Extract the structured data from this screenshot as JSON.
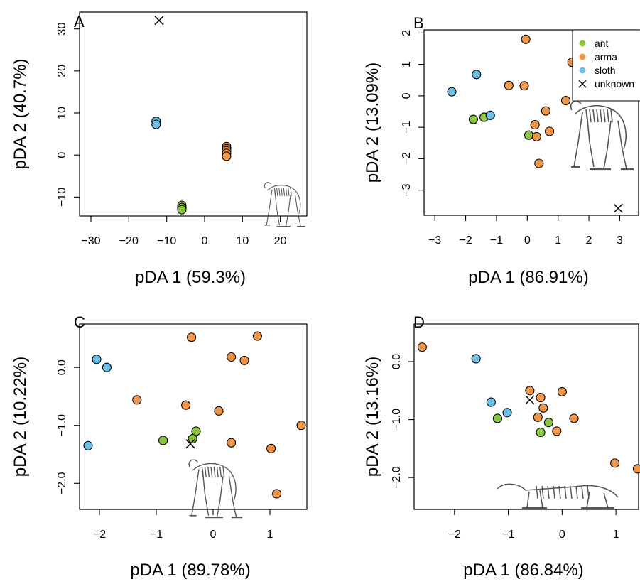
{
  "colors": {
    "ant": "#8cc63f",
    "arma": "#f0964b",
    "sloth": "#6cbfe6",
    "unknown": "#000000"
  },
  "legend": {
    "entries": [
      "ant",
      "arma",
      "sloth",
      "unknown"
    ],
    "placement": "top-right of panel B"
  },
  "chart_data": [
    {
      "type": "scatter",
      "title": "A",
      "xlabel": "pDA 1 (59.3%)",
      "ylabel": "pDA 2 (40.7%)",
      "xlim": [
        -33,
        27
      ],
      "ylim": [
        -14.5,
        34
      ],
      "xticks": [
        -30,
        -20,
        -10,
        0,
        10,
        20
      ],
      "yticks": [
        -10,
        0,
        10,
        20,
        30
      ],
      "series": [
        {
          "name": "ant",
          "points": [
            [
              -6,
              -12
            ],
            [
              -6,
              -12.5
            ],
            [
              -6,
              -13
            ]
          ]
        },
        {
          "name": "arma",
          "points": [
            [
              5.8,
              2
            ],
            [
              5.8,
              1.5
            ],
            [
              5.8,
              1
            ],
            [
              5.8,
              0.4
            ],
            [
              5.8,
              -0.3
            ]
          ]
        },
        {
          "name": "sloth",
          "points": [
            [
              -12.8,
              8
            ],
            [
              -12.8,
              7.3
            ]
          ]
        },
        {
          "name": "unknown",
          "points": [
            [
              -12,
              32
            ]
          ]
        }
      ]
    },
    {
      "type": "scatter",
      "title": "B",
      "xlabel": "pDA 1 (86.91%)",
      "ylabel": "pDA 2 (13.09%)",
      "xlim": [
        -3.35,
        3.75
      ],
      "ylim": [
        -3.8,
        2.1
      ],
      "xticks": [
        -3,
        -2,
        -1,
        0,
        1,
        2,
        3
      ],
      "yticks": [
        -3,
        -2,
        -1,
        0,
        1,
        2
      ],
      "series": [
        {
          "name": "ant",
          "points": [
            [
              -1.75,
              -0.75
            ],
            [
              -1.4,
              -0.68
            ],
            [
              0.05,
              -1.25
            ]
          ]
        },
        {
          "name": "arma",
          "points": [
            [
              -0.05,
              1.8
            ],
            [
              -0.6,
              0.33
            ],
            [
              -0.1,
              0.32
            ],
            [
              1.45,
              1.07
            ],
            [
              1.25,
              -0.15
            ],
            [
              0.6,
              -0.48
            ],
            [
              0.25,
              -0.92
            ],
            [
              0.72,
              -1.13
            ],
            [
              0.3,
              -1.3
            ],
            [
              0.38,
              -2.15
            ]
          ]
        },
        {
          "name": "sloth",
          "points": [
            [
              -2.45,
              0.13
            ],
            [
              -1.65,
              0.68
            ],
            [
              -1.2,
              -0.62
            ]
          ]
        },
        {
          "name": "unknown",
          "points": [
            [
              2.95,
              -3.58
            ]
          ]
        }
      ]
    },
    {
      "type": "scatter",
      "title": "C",
      "xlabel": "pDA 1 (89.78%)",
      "ylabel": "pDA 2 (10.22%)",
      "xlim": [
        -2.35,
        1.65
      ],
      "ylim": [
        -2.45,
        0.75
      ],
      "xticks": [
        -2,
        -1,
        0,
        1
      ],
      "yticks": [
        -2.0,
        -1.0,
        0.0
      ],
      "ytick_labels": [
        "−2.0",
        "−1.0",
        "0.0"
      ],
      "series": [
        {
          "name": "ant",
          "points": [
            [
              -0.88,
              -1.26
            ],
            [
              -0.3,
              -1.1
            ],
            [
              -0.36,
              -1.23
            ]
          ]
        },
        {
          "name": "arma",
          "points": [
            [
              -0.38,
              0.52
            ],
            [
              0.78,
              0.54
            ],
            [
              0.32,
              0.18
            ],
            [
              0.55,
              0.12
            ],
            [
              -1.34,
              -0.56
            ],
            [
              -0.48,
              -0.65
            ],
            [
              0.1,
              -0.75
            ],
            [
              1.55,
              -1.0
            ],
            [
              0.32,
              -1.3
            ],
            [
              1.02,
              -1.4
            ],
            [
              1.12,
              -2.18
            ]
          ]
        },
        {
          "name": "sloth",
          "points": [
            [
              -2.05,
              0.14
            ],
            [
              -1.87,
              0.0
            ],
            [
              -2.2,
              -1.35
            ]
          ]
        },
        {
          "name": "unknown",
          "points": [
            [
              -0.4,
              -1.32
            ]
          ]
        }
      ]
    },
    {
      "type": "scatter",
      "title": "D",
      "xlabel": "pDA 1 (86.84%)",
      "ylabel": "pDA 2 (13.16%)",
      "xlim": [
        -2.75,
        1.5
      ],
      "ylim": [
        -2.55,
        0.65
      ],
      "xticks": [
        -2,
        -1,
        0,
        1
      ],
      "yticks": [
        -2.0,
        -1.0,
        0.0
      ],
      "ytick_labels": [
        "−2.0",
        "−1.0",
        "0.0"
      ],
      "series": [
        {
          "name": "ant",
          "points": [
            [
              -1.2,
              -0.98
            ],
            [
              -0.25,
              -1.05
            ],
            [
              -0.4,
              -1.22
            ]
          ]
        },
        {
          "name": "arma",
          "points": [
            [
              -2.6,
              0.25
            ],
            [
              -0.6,
              -0.5
            ],
            [
              -0.4,
              -0.62
            ],
            [
              0.0,
              -0.52
            ],
            [
              -0.35,
              -0.8
            ],
            [
              -0.45,
              -0.96
            ],
            [
              0.22,
              -0.98
            ],
            [
              -0.1,
              -1.2
            ],
            [
              0.98,
              -1.75
            ],
            [
              1.4,
              -1.85
            ]
          ]
        },
        {
          "name": "sloth",
          "points": [
            [
              -1.6,
              0.05
            ],
            [
              -1.32,
              -0.7
            ],
            [
              -1.02,
              -0.88
            ]
          ]
        },
        {
          "name": "unknown",
          "points": [
            [
              -0.6,
              -0.66
            ]
          ]
        }
      ]
    }
  ]
}
